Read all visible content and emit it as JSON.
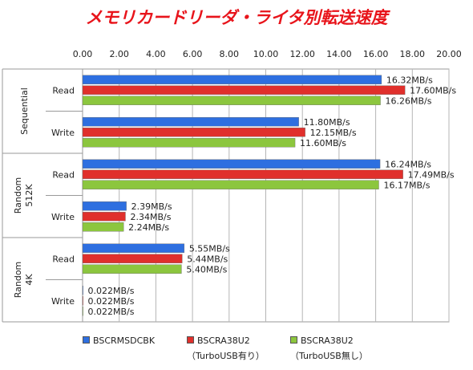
{
  "chart_data": {
    "type": "bar",
    "orientation": "horizontal",
    "title": "メモリカードリーダ・ライタ別転送速度",
    "xlim": [
      0,
      20
    ],
    "xticks": [
      "0.00",
      "2.00",
      "4.00",
      "6.00",
      "8.00",
      "10.00",
      "12.00",
      "14.00",
      "16.00",
      "18.00",
      "20.00"
    ],
    "grid": true,
    "groups": [
      {
        "label": "Sequential",
        "rows": [
          {
            "label": "Read",
            "values": [
              16.32,
              17.6,
              16.26
            ],
            "data_labels": [
              "16.32MB/s",
              "17.60MB/s",
              "16.26MB/s"
            ]
          },
          {
            "label": "Write",
            "values": [
              11.8,
              12.15,
              11.6
            ],
            "data_labels": [
              "11.80MB/s",
              "12.15MB/s",
              "11.60MB/s"
            ]
          }
        ]
      },
      {
        "label": "Random 512K",
        "rows": [
          {
            "label": "Read",
            "values": [
              16.24,
              17.49,
              16.17
            ],
            "data_labels": [
              "16.24MB/s",
              "17.49MB/s",
              "16.17MB/s"
            ]
          },
          {
            "label": "Write",
            "values": [
              2.39,
              2.34,
              2.24
            ],
            "data_labels": [
              "2.39MB/s",
              "2.34MB/s",
              "2.24MB/s"
            ]
          }
        ]
      },
      {
        "label": "Random 4K",
        "rows": [
          {
            "label": "Read",
            "values": [
              5.55,
              5.44,
              5.4
            ],
            "data_labels": [
              "5.55MB/s",
              "5.44MB/s",
              "5.40MB/s"
            ]
          },
          {
            "label": "Write",
            "values": [
              0.022,
              0.022,
              0.022
            ],
            "data_labels": [
              "0.022MB/s",
              "0.022MB/s",
              "0.022MB/s"
            ]
          }
        ]
      }
    ],
    "series": [
      {
        "name": "BSCRMSDCBK",
        "subname": "",
        "color": "#2e6fe0"
      },
      {
        "name": "BSCRA38U2",
        "subname": "（TurboUSB有り）",
        "color": "#e0302c"
      },
      {
        "name": "BSCRA38U2",
        "subname": "（TurboUSB無し）",
        "color": "#8cc63e"
      }
    ],
    "legend_position": "bottom"
  }
}
